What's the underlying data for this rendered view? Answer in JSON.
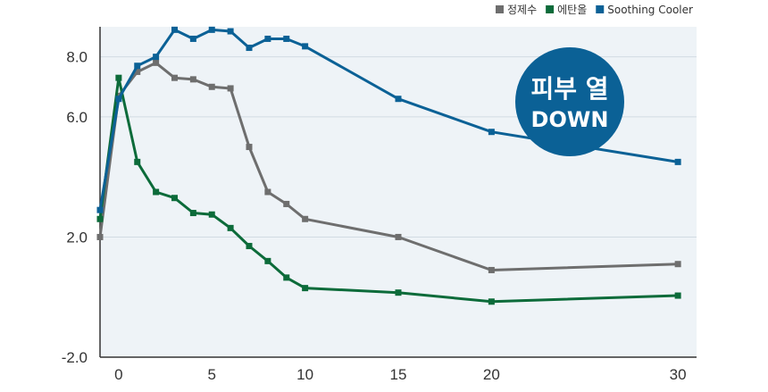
{
  "chart_data": {
    "type": "line",
    "x": [
      -1,
      0,
      1,
      2,
      3,
      4,
      5,
      6,
      7,
      8,
      9,
      10,
      15,
      20,
      30
    ],
    "xticks": [
      0,
      5,
      10,
      15,
      20,
      30
    ],
    "xtick_labels": [
      "0",
      "5",
      "10",
      "15",
      "20",
      "30"
    ],
    "xlim": [
      -1,
      31
    ],
    "yticks": [
      -2.0,
      2.0,
      6.0,
      8.0
    ],
    "ytick_labels": [
      "-2.0",
      "2.0",
      "6.0",
      "8.0"
    ],
    "ylim": [
      -2.0,
      9.0
    ],
    "grid": "horizontal",
    "legend_position": "top-right",
    "series": [
      {
        "name": "정제수",
        "color": "#6e6e6e",
        "values": [
          2.0,
          6.7,
          7.5,
          7.8,
          7.3,
          7.25,
          7.0,
          6.95,
          5.0,
          3.5,
          3.1,
          2.6,
          2.0,
          0.9,
          1.1
        ]
      },
      {
        "name": "에탄올",
        "color": "#0c6b3a",
        "values": [
          2.6,
          7.3,
          4.5,
          3.5,
          3.3,
          2.8,
          2.75,
          2.3,
          1.7,
          1.2,
          0.65,
          0.3,
          0.15,
          -0.15,
          0.05
        ]
      },
      {
        "name": "Soothing Cooler",
        "color": "#0b6196",
        "values": [
          2.9,
          6.6,
          7.7,
          8.0,
          8.9,
          8.6,
          8.9,
          8.85,
          8.3,
          8.6,
          8.6,
          8.35,
          6.6,
          5.5,
          4.5
        ]
      }
    ],
    "annotations": [
      {
        "text_line1": "피부 열",
        "text_line2": "DOWN",
        "color": "#0b6196"
      }
    ]
  }
}
